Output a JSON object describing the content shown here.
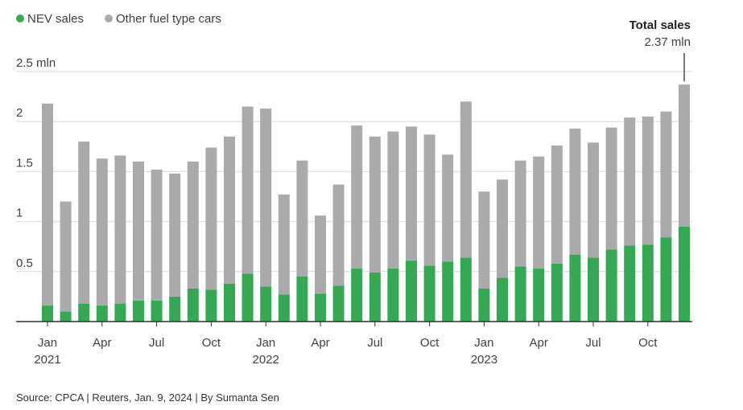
{
  "chart_data": {
    "type": "bar",
    "stacked": true,
    "title": "",
    "xlabel": "",
    "ylabel": "",
    "ylim": [
      0,
      2.5
    ],
    "y_ticks": [
      {
        "value": 0.5,
        "label": "0.5"
      },
      {
        "value": 1,
        "label": "1"
      },
      {
        "value": 1.5,
        "label": "1.5"
      },
      {
        "value": 2,
        "label": "2"
      },
      {
        "value": 2.5,
        "label": "2.5 mln"
      }
    ],
    "grid": true,
    "legend_position": "top-left",
    "categories": [
      "2021-01",
      "2021-02",
      "2021-03",
      "2021-04",
      "2021-05",
      "2021-06",
      "2021-07",
      "2021-08",
      "2021-09",
      "2021-10",
      "2021-11",
      "2021-12",
      "2022-01",
      "2022-02",
      "2022-03",
      "2022-04",
      "2022-05",
      "2022-06",
      "2022-07",
      "2022-08",
      "2022-09",
      "2022-10",
      "2022-11",
      "2022-12",
      "2023-01",
      "2023-02",
      "2023-03",
      "2023-04",
      "2023-05",
      "2023-06",
      "2023-07",
      "2023-08",
      "2023-09",
      "2023-10",
      "2023-11",
      "2023-12"
    ],
    "x_ticks": [
      {
        "index": 0,
        "label": "Jan",
        "year": "2021"
      },
      {
        "index": 3,
        "label": "Apr"
      },
      {
        "index": 6,
        "label": "Jul"
      },
      {
        "index": 9,
        "label": "Oct"
      },
      {
        "index": 12,
        "label": "Jan",
        "year": "2022"
      },
      {
        "index": 15,
        "label": "Apr"
      },
      {
        "index": 18,
        "label": "Jul"
      },
      {
        "index": 21,
        "label": "Oct"
      },
      {
        "index": 24,
        "label": "Jan",
        "year": "2023"
      },
      {
        "index": 27,
        "label": "Apr"
      },
      {
        "index": 30,
        "label": "Jul"
      },
      {
        "index": 33,
        "label": "Oct"
      }
    ],
    "series": [
      {
        "name": "NEV sales",
        "color": "#34a853",
        "values": [
          0.16,
          0.1,
          0.18,
          0.16,
          0.18,
          0.21,
          0.21,
          0.25,
          0.33,
          0.32,
          0.38,
          0.48,
          0.35,
          0.27,
          0.45,
          0.28,
          0.36,
          0.53,
          0.49,
          0.53,
          0.61,
          0.56,
          0.6,
          0.64,
          0.33,
          0.44,
          0.55,
          0.53,
          0.58,
          0.67,
          0.64,
          0.72,
          0.76,
          0.77,
          0.84,
          0.95
        ]
      },
      {
        "name": "Other fuel type cars",
        "color": "#aaaaaa",
        "values": [
          2.02,
          1.1,
          1.62,
          1.47,
          1.48,
          1.39,
          1.31,
          1.23,
          1.27,
          1.42,
          1.47,
          1.67,
          1.78,
          1.0,
          1.16,
          0.78,
          1.01,
          1.43,
          1.36,
          1.37,
          1.34,
          1.31,
          1.07,
          1.56,
          0.97,
          0.98,
          1.06,
          1.12,
          1.18,
          1.26,
          1.15,
          1.22,
          1.28,
          1.28,
          1.26,
          1.42
        ]
      }
    ],
    "annotation": {
      "title": "Total sales",
      "value": "2.37 mln",
      "index": 35
    }
  },
  "source": "Source: CPCA | Reuters, Jan. 9, 2024 | By Sumanta Sen"
}
